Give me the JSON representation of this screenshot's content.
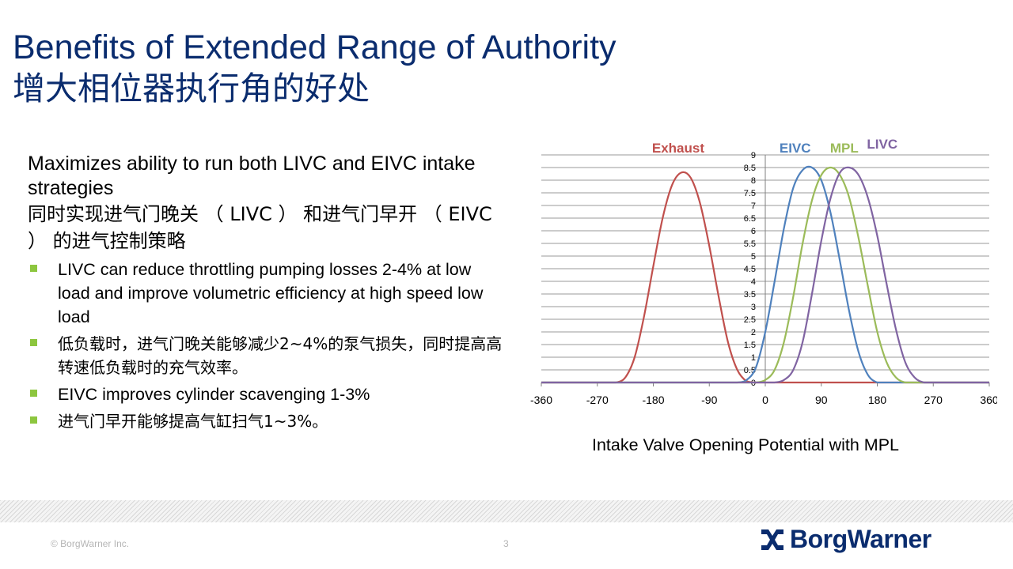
{
  "slide": {
    "title_en": "Benefits of Extended Range of Authority",
    "title_cn": "增大相位器执行角的好处",
    "lead_en": "Maximizes ability to run both LIVC and EIVC intake strategies",
    "lead_cn": "同时实现进气门晚关 （ LIVC ） 和进气门早开 （ EIVC ） 的进气控制策略",
    "bullets": [
      "LIVC can reduce throttling pumping losses 2-4% at low load and improve volumetric efficiency at high speed low load",
      "低负载时，进气门晚关能够减少2~4%的泵气损失，同时提高高转速低负载时的充气效率。",
      "EIVC improves cylinder scavenging 1-3%",
      "进气门早开能够提高气缸扫气1~3%。"
    ],
    "bullet_color": "#8dc63f"
  },
  "chart_caption": "Intake Valve Opening Potential with MPL",
  "chart_data": {
    "type": "line",
    "title": "",
    "xlabel": "",
    "ylabel": "",
    "xlim": [
      -360,
      360
    ],
    "ylim": [
      0,
      9
    ],
    "x_ticks": [
      "-360",
      "-270",
      "-180",
      "-90",
      "0",
      "90",
      "180",
      "270",
      "360"
    ],
    "y_ticks": [
      "0",
      "0.5",
      "1",
      "1.5",
      "2",
      "2.5",
      "3",
      "3.5",
      "4",
      "4.5",
      "5",
      "5.5",
      "6",
      "6.5",
      "7",
      "7.5",
      "8",
      "8.5",
      "9"
    ],
    "grid": "horizontal",
    "x": [
      -360,
      -345,
      -330,
      -315,
      -300,
      -285,
      -270,
      -255,
      -240,
      -225,
      -210,
      -195,
      -180,
      -165,
      -150,
      -135,
      -120,
      -105,
      -90,
      -75,
      -60,
      -45,
      -30,
      -15,
      0,
      15,
      30,
      45,
      60,
      75,
      90,
      105,
      120,
      135,
      150,
      165,
      180,
      195,
      210,
      225,
      240,
      255,
      270,
      285,
      300,
      315,
      330,
      345,
      360
    ],
    "series": [
      {
        "name": "Exhaust",
        "color": "#c0504d",
        "values": [
          0,
          0,
          0,
          0,
          0,
          0,
          0,
          0,
          0,
          0.2,
          1.0,
          2.6,
          4.6,
          6.5,
          7.8,
          8.3,
          8.1,
          7.1,
          5.4,
          3.4,
          1.6,
          0.5,
          0.05,
          0,
          0,
          0,
          0,
          0,
          0,
          0,
          0,
          0,
          0,
          0,
          0,
          0,
          0,
          0,
          0,
          0,
          0,
          0,
          0,
          0,
          0,
          0,
          0,
          0,
          0
        ]
      },
      {
        "name": "EIVC",
        "color": "#4f81bd",
        "values": [
          0,
          0,
          0,
          0,
          0,
          0,
          0,
          0,
          0,
          0,
          0,
          0,
          0,
          0,
          0,
          0,
          0,
          0,
          0,
          0,
          0,
          0,
          0.1,
          0.6,
          2.0,
          4.0,
          6.1,
          7.7,
          8.4,
          8.5,
          8.0,
          6.7,
          4.8,
          2.8,
          1.2,
          0.3,
          0,
          0,
          0,
          0,
          0,
          0,
          0,
          0,
          0,
          0,
          0,
          0,
          0
        ]
      },
      {
        "name": "MPL",
        "color": "#9bbb59",
        "values": [
          0,
          0,
          0,
          0,
          0,
          0,
          0,
          0,
          0,
          0,
          0,
          0,
          0,
          0,
          0,
          0,
          0,
          0,
          0,
          0,
          0,
          0,
          0,
          0,
          0.1,
          0.5,
          1.6,
          3.4,
          5.5,
          7.2,
          8.2,
          8.5,
          8.2,
          7.3,
          5.7,
          3.8,
          2.0,
          0.8,
          0.2,
          0,
          0,
          0,
          0,
          0,
          0,
          0,
          0,
          0,
          0
        ]
      },
      {
        "name": "LIVC",
        "color": "#8064a2",
        "values": [
          0,
          0,
          0,
          0,
          0,
          0,
          0,
          0,
          0,
          0,
          0,
          0,
          0,
          0,
          0,
          0,
          0,
          0,
          0,
          0,
          0,
          0,
          0,
          0,
          0,
          0,
          0.1,
          0.5,
          1.6,
          3.5,
          5.6,
          7.3,
          8.3,
          8.5,
          8.2,
          7.3,
          5.8,
          3.9,
          2.1,
          0.8,
          0.2,
          0,
          0,
          0,
          0,
          0,
          0,
          0,
          0
        ]
      }
    ]
  },
  "footer": {
    "copyright": "© BorgWarner  Inc.",
    "page_number": "3",
    "logo_text": "BorgWarner",
    "logo_color": "#0a2c6e"
  }
}
